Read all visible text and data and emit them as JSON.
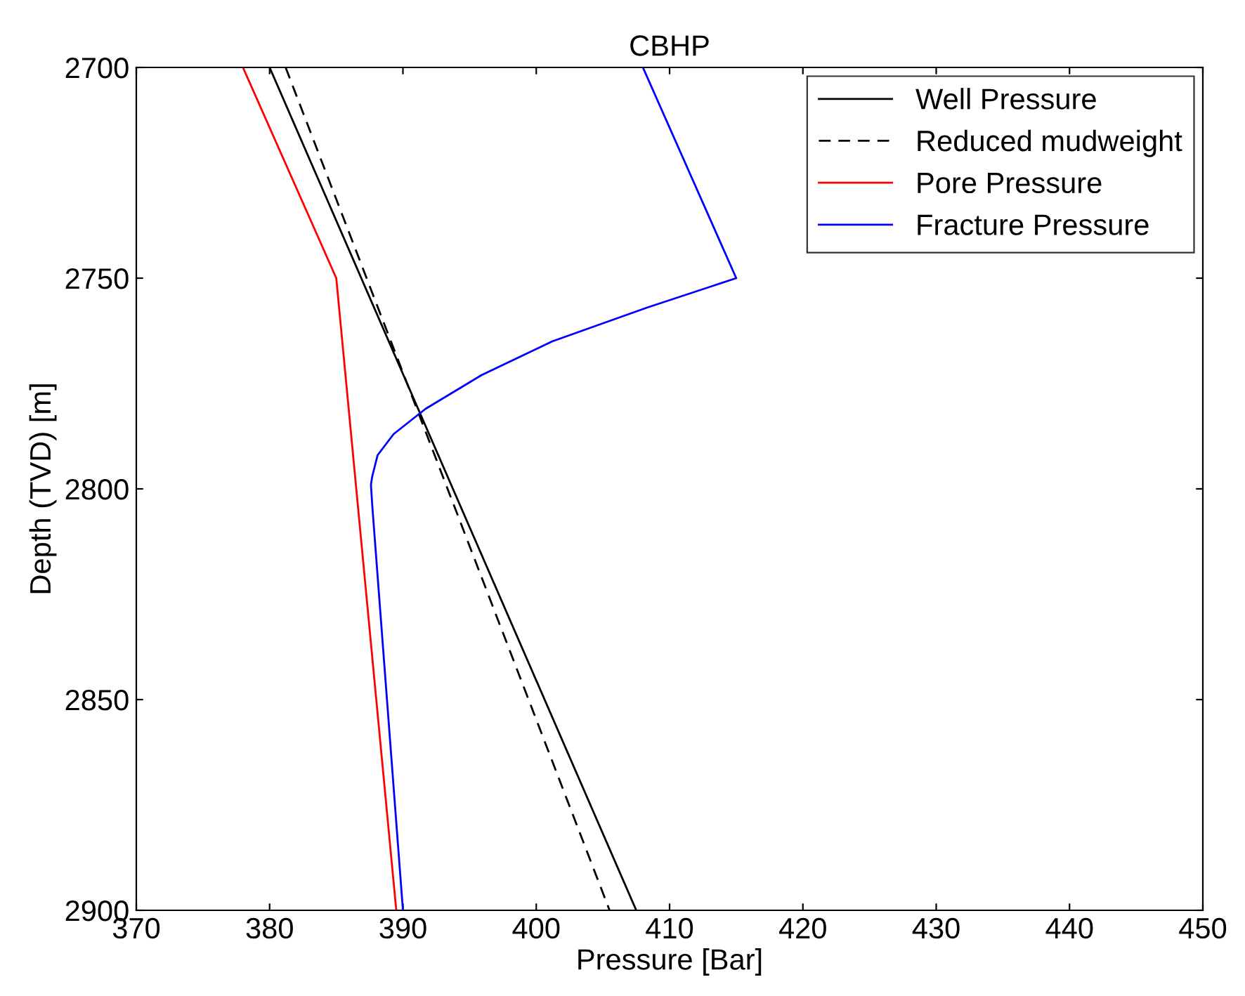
{
  "chart_data": {
    "type": "line",
    "title": "CBHP",
    "xlabel": "Pressure [Bar]",
    "ylabel": "Depth (TVD) [m]",
    "xlim": [
      370,
      450
    ],
    "xticks": [
      370,
      380,
      390,
      400,
      410,
      420,
      430,
      440,
      450
    ],
    "ylim": [
      2900,
      2700
    ],
    "yticks": [
      2700,
      2750,
      2800,
      2850,
      2900
    ],
    "grid": false,
    "legend": "top right",
    "marker": "none",
    "series": [
      {
        "name": "Well Pressure",
        "color": "#000000",
        "line_style": "solid",
        "x": [
          380,
          407.5
        ],
        "values": [
          2700,
          2900
        ]
      },
      {
        "name": "Reduced mudweight",
        "color": "#000000",
        "line_style": "dashed",
        "x": [
          381.2,
          405.5
        ],
        "values": [
          2700,
          2900
        ]
      },
      {
        "name": "Pore Pressure",
        "color": "#ff0000",
        "line_style": "solid",
        "x": [
          378,
          385,
          389.5
        ],
        "values": [
          2700,
          2750,
          2900
        ]
      },
      {
        "name": "Fracture Pressure",
        "color": "#0000ff",
        "line_style": "solid",
        "x": [
          408,
          415,
          408.3,
          401.2,
          395.9,
          391.7,
          389.3,
          388.1,
          387.7,
          387.6,
          387.7,
          390
        ],
        "values": [
          2700,
          2750,
          2757,
          2765,
          2773,
          2781,
          2787,
          2792,
          2797,
          2799,
          2804,
          2900
        ]
      }
    ]
  }
}
